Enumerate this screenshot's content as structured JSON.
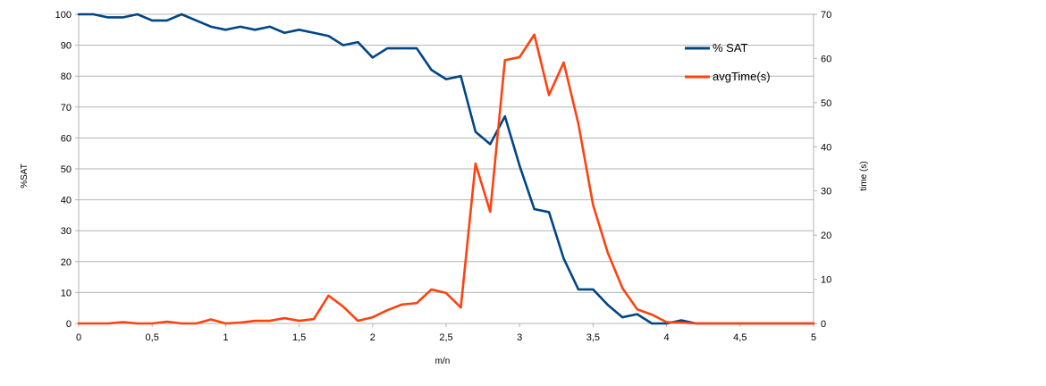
{
  "chart_data": {
    "type": "line",
    "xlabel": "m/n",
    "ylabel": "%SAT",
    "y2label": "time (s)",
    "xlim": [
      0,
      5
    ],
    "ylim": [
      0,
      100
    ],
    "y2lim": [
      0,
      70
    ],
    "xticks": [
      "0",
      "0,5",
      "1",
      "1,5",
      "2",
      "2,5",
      "3",
      "3,5",
      "4",
      "4,5",
      "5"
    ],
    "yticks": [
      "0",
      "10",
      "20",
      "30",
      "40",
      "50",
      "60",
      "70",
      "80",
      "90",
      "100"
    ],
    "y2ticks": [
      "0",
      "10",
      "20",
      "30",
      "40",
      "50",
      "60",
      "70"
    ],
    "grid": "horizontal",
    "legend_position": "top-right",
    "x": [
      0,
      0.1,
      0.2,
      0.3,
      0.4,
      0.5,
      0.6,
      0.7,
      0.8,
      0.9,
      1.0,
      1.1,
      1.2,
      1.3,
      1.4,
      1.5,
      1.6,
      1.7,
      1.8,
      1.9,
      2.0,
      2.1,
      2.2,
      2.3,
      2.4,
      2.5,
      2.6,
      2.7,
      2.8,
      2.9,
      3.0,
      3.1,
      3.2,
      3.3,
      3.4,
      3.5,
      3.6,
      3.7,
      3.8,
      3.9,
      4.0,
      4.1,
      4.2,
      4.3,
      4.4,
      4.5,
      4.6,
      4.7,
      4.8,
      4.9,
      5.0
    ],
    "series": [
      {
        "name": "% SAT",
        "axis": "left",
        "color": "#004586",
        "values": [
          100,
          100,
          99,
          99,
          100,
          98,
          98,
          100,
          98,
          96,
          95,
          96,
          95,
          96,
          94,
          95,
          94,
          93,
          90,
          91,
          86,
          89,
          89,
          89,
          82,
          79,
          80,
          62,
          58,
          67,
          51,
          37,
          36,
          21,
          11,
          11,
          6,
          2,
          3,
          0,
          0,
          1,
          0,
          0,
          0,
          0,
          0,
          0,
          0,
          0,
          0
        ]
      },
      {
        "name": "avgTime(s)",
        "axis": "right",
        "color": "#ff420e",
        "values": [
          0,
          0,
          0,
          0.3,
          0,
          0,
          0.4,
          0,
          0,
          0.9,
          0,
          0.2,
          0.6,
          0.6,
          1.2,
          0.6,
          1.0,
          6.3,
          3.8,
          0.6,
          1.4,
          3.0,
          4.3,
          4.6,
          7.7,
          6.9,
          3.6,
          36.2,
          25.3,
          59.6,
          60.3,
          65.4,
          51.7,
          59.1,
          45.2,
          26.8,
          16.0,
          8.0,
          3.2,
          2.0,
          0.3,
          0.2,
          0,
          0,
          0,
          0,
          0,
          0,
          0,
          0,
          0
        ]
      }
    ]
  }
}
